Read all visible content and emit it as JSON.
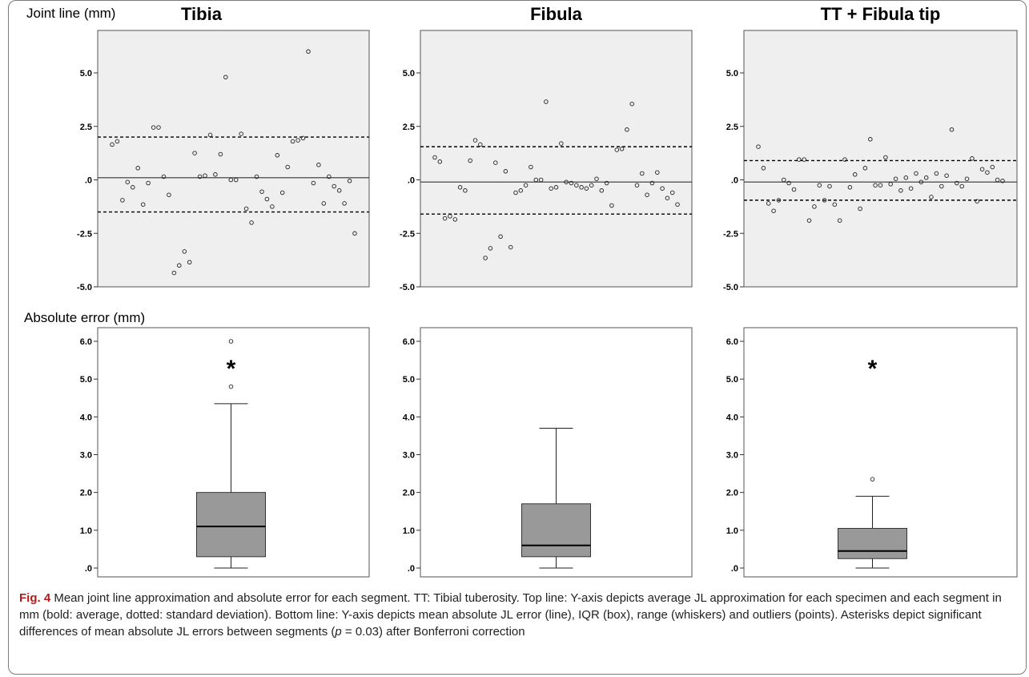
{
  "figure": {
    "row_labels": {
      "top": "Joint line (mm)",
      "bottom": "Absolute error (mm)"
    },
    "caption": {
      "label": "Fig. 4",
      "text1": " Mean joint line approximation and absolute error for each segment. TT: Tibial tuberosity. Top line: Y-axis depicts average JL approximation for each specimen and each segment in mm (bold: average, dotted: standard deviation). Bottom line: Y-axis depicts mean absolute JL error (line), IQR (box), range (whiskers) and outliers (points). Asterisks depict significant differences of mean absolute JL errors between segments (",
      "p": "p",
      "text2": " = 0.03) after Bonferroni correction"
    },
    "colors": {
      "plot_bg": "#efefef",
      "box_fill": "#999999",
      "caption_label": "#b01c1c"
    }
  },
  "chart_data": [
    {
      "type": "scatter",
      "title": "Tibia",
      "ylim": [
        -5.0,
        6.0
      ],
      "yticks": [
        5.0,
        2.5,
        0.0,
        -2.5,
        -5.0
      ],
      "yticklabels": [
        "5.0",
        "2.5",
        ".0",
        "-2.5",
        "-5.0"
      ],
      "mean": 0.1,
      "sd_upper": 2.0,
      "sd_lower": -1.5,
      "values": [
        1.65,
        1.8,
        -0.95,
        -0.1,
        -0.35,
        0.55,
        -1.15,
        -0.15,
        2.45,
        2.45,
        0.15,
        -0.7,
        -4.35,
        -4.0,
        -3.35,
        -3.85,
        1.25,
        0.15,
        0.2,
        2.1,
        0.25,
        1.2,
        4.8,
        0.0,
        0.0,
        2.15,
        -1.35,
        -2.0,
        0.15,
        -0.55,
        -0.9,
        -1.25,
        1.15,
        -0.6,
        0.6,
        1.8,
        1.85,
        1.95,
        6.0,
        -0.15,
        0.7,
        -1.1,
        0.15,
        -0.3,
        -0.5,
        -1.1,
        -0.05,
        -2.5
      ]
    },
    {
      "type": "scatter",
      "title": "Fibula",
      "ylim": [
        -5.0,
        6.0
      ],
      "yticks": [
        5.0,
        2.5,
        0.0,
        -2.5,
        -5.0
      ],
      "yticklabels": [
        "5.0",
        "2.5",
        ".0",
        "-2.5",
        "-5.0"
      ],
      "mean": -0.1,
      "sd_upper": 1.55,
      "sd_lower": -1.6,
      "values": [
        1.05,
        0.85,
        -1.8,
        -1.7,
        -1.85,
        -0.35,
        -0.5,
        0.9,
        1.85,
        1.65,
        -3.65,
        -3.2,
        0.8,
        -2.65,
        0.4,
        -3.15,
        -0.6,
        -0.5,
        -0.25,
        0.6,
        0.0,
        0.0,
        3.65,
        -0.4,
        -0.35,
        1.7,
        -0.1,
        -0.15,
        -0.25,
        -0.35,
        -0.4,
        -0.25,
        0.05,
        -0.5,
        -0.15,
        -1.2,
        1.4,
        1.45,
        2.35,
        3.55,
        -0.25,
        0.3,
        -0.7,
        -0.15,
        0.35,
        -0.4,
        -0.85,
        -0.6,
        -1.15
      ]
    },
    {
      "type": "scatter",
      "title": "TT + Fibula tip",
      "ylim": [
        -5.0,
        6.0
      ],
      "yticks": [
        5.0,
        2.5,
        0.0,
        -2.5,
        -5.0
      ],
      "yticklabels": [
        "5.0",
        "2.5",
        ".0",
        "-2.5",
        "-5.0"
      ],
      "mean": -0.1,
      "sd_upper": 0.9,
      "sd_lower": -0.95,
      "values": [
        1.55,
        0.55,
        -1.1,
        -1.45,
        -0.95,
        0.0,
        -0.15,
        -0.45,
        0.95,
        0.95,
        -1.9,
        -1.25,
        -0.25,
        -0.95,
        -0.3,
        -1.15,
        -1.9,
        0.95,
        -0.35,
        0.25,
        -1.35,
        0.55,
        1.9,
        -0.25,
        -0.25,
        1.05,
        -0.2,
        0.05,
        -0.5,
        0.1,
        -0.4,
        0.3,
        -0.1,
        0.1,
        -0.8,
        0.3,
        -0.3,
        0.2,
        2.35,
        -0.15,
        -0.3,
        0.05,
        1.0,
        -1.0,
        0.5,
        0.35,
        0.6,
        0.0,
        -0.05
      ]
    },
    {
      "type": "box",
      "title": "Tibia",
      "ylim": [
        0.0,
        6.0
      ],
      "yticks": [
        6.0,
        5.0,
        4.0,
        3.0,
        2.0,
        1.0,
        0.0
      ],
      "yticklabels": [
        "6.0",
        "5.0",
        "4.0",
        "3.0",
        "2.0",
        "1.0",
        ".0"
      ],
      "whisker_low": 0.0,
      "q1": 0.3,
      "median": 1.1,
      "q3": 2.0,
      "whisker_high": 4.35,
      "outliers": [
        4.8,
        6.0
      ],
      "annotation": "*"
    },
    {
      "type": "box",
      "title": "Fibula",
      "ylim": [
        0.0,
        6.0
      ],
      "yticks": [
        6.0,
        5.0,
        4.0,
        3.0,
        2.0,
        1.0,
        0.0
      ],
      "yticklabels": [
        "6.0",
        "5.0",
        "4.0",
        "3.0",
        "2.0",
        "1.0",
        ".0"
      ],
      "whisker_low": 0.0,
      "q1": 0.3,
      "median": 0.6,
      "q3": 1.7,
      "whisker_high": 3.7,
      "outliers": [],
      "annotation": ""
    },
    {
      "type": "box",
      "title": "TT + Fibula tip",
      "ylim": [
        0.0,
        6.0
      ],
      "yticks": [
        6.0,
        5.0,
        4.0,
        3.0,
        2.0,
        1.0,
        0.0
      ],
      "yticklabels": [
        "6.0",
        "5.0",
        "4.0",
        "3.0",
        "2.0",
        "1.0",
        ".0"
      ],
      "whisker_low": 0.0,
      "q1": 0.25,
      "median": 0.45,
      "q3": 1.05,
      "whisker_high": 1.9,
      "outliers": [
        2.35
      ],
      "annotation": "*"
    }
  ]
}
